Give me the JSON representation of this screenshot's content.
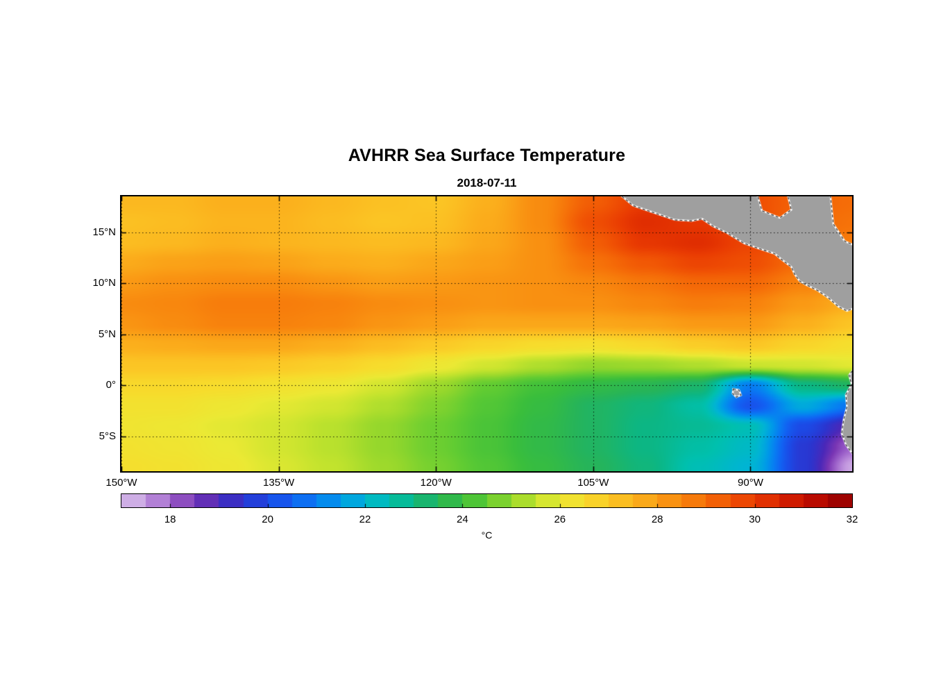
{
  "chart_data": {
    "type": "heatmap",
    "title": "AVHRR Sea Surface Temperature",
    "subtitle": "2018-07-11",
    "grid_lines": true,
    "x_axis": {
      "min": -150,
      "max": -80.3,
      "ticks": [
        {
          "v": -150,
          "label": "150°W"
        },
        {
          "v": -135,
          "label": "135°W"
        },
        {
          "v": -120,
          "label": "120°W"
        },
        {
          "v": -105,
          "label": "105°W"
        },
        {
          "v": -90,
          "label": "90°W"
        }
      ]
    },
    "y_axis": {
      "min": -8.4,
      "max": 18.5,
      "ticks": [
        {
          "v": 15,
          "label": "15°N"
        },
        {
          "v": 10,
          "label": "10°N"
        },
        {
          "v": 5,
          "label": "5°N"
        },
        {
          "v": 0,
          "label": "0°"
        },
        {
          "v": -5,
          "label": "5°S"
        }
      ]
    },
    "colorbar": {
      "min": 17,
      "max": 32,
      "step": 0.5,
      "unit_label": "°C",
      "ticks": [
        {
          "v": 18,
          "label": "18"
        },
        {
          "v": 20,
          "label": "20"
        },
        {
          "v": 22,
          "label": "22"
        },
        {
          "v": 24,
          "label": "24"
        },
        {
          "v": 26,
          "label": "26"
        },
        {
          "v": 28,
          "label": "28"
        },
        {
          "v": 30,
          "label": "30"
        },
        {
          "v": 32,
          "label": "32"
        }
      ],
      "stops": [
        [
          17.0,
          "#d8c2ea"
        ],
        [
          17.5,
          "#c49ae0"
        ],
        [
          18.0,
          "#a066cc"
        ],
        [
          18.5,
          "#7a36b4"
        ],
        [
          19.0,
          "#4b28b8"
        ],
        [
          19.5,
          "#2b35cf"
        ],
        [
          20.0,
          "#1c4ae6"
        ],
        [
          20.5,
          "#1261f2"
        ],
        [
          21.0,
          "#087df2"
        ],
        [
          21.5,
          "#009ae8"
        ],
        [
          22.0,
          "#00b4d4"
        ],
        [
          22.5,
          "#00c0ae"
        ],
        [
          23.0,
          "#0cb684"
        ],
        [
          23.5,
          "#26b45a"
        ],
        [
          24.0,
          "#3abe3c"
        ],
        [
          24.5,
          "#62cc32"
        ],
        [
          25.0,
          "#95d72c"
        ],
        [
          25.5,
          "#c2e32d"
        ],
        [
          26.0,
          "#ebe934"
        ],
        [
          26.5,
          "#f7dc2c"
        ],
        [
          27.0,
          "#fbc926"
        ],
        [
          27.5,
          "#fbb41e"
        ],
        [
          28.0,
          "#fa9e16"
        ],
        [
          28.5,
          "#f8870e"
        ],
        [
          29.0,
          "#f56d08"
        ],
        [
          29.5,
          "#f05304"
        ],
        [
          30.0,
          "#e93b02"
        ],
        [
          30.5,
          "#da2500"
        ],
        [
          31.0,
          "#c51200"
        ],
        [
          31.5,
          "#ad0400"
        ],
        [
          32.0,
          "#900000"
        ]
      ]
    },
    "sst_grid": {
      "lons": [
        -150,
        -145,
        -140,
        -135,
        -130,
        -125,
        -120,
        -115,
        -110,
        -105,
        -100,
        -95,
        -90,
        -85,
        -80
      ],
      "lats": [
        18,
        16,
        14,
        12,
        10,
        8,
        6,
        4,
        2,
        0,
        -2,
        -4,
        -6,
        -8
      ],
      "values": [
        [
          27.4,
          27.4,
          27.6,
          27.6,
          27.4,
          27.2,
          27.1,
          27.6,
          28.4,
          29.3,
          30.0,
          30.0,
          29.6,
          29.2,
          29.0
        ],
        [
          27.2,
          27.3,
          27.5,
          27.5,
          27.3,
          27.1,
          27.2,
          27.7,
          28.4,
          29.6,
          30.3,
          30.1,
          29.6,
          29.1,
          28.9
        ],
        [
          27.3,
          27.4,
          27.6,
          27.5,
          27.4,
          27.3,
          27.4,
          27.8,
          28.3,
          29.3,
          30.1,
          30.3,
          29.8,
          29.0,
          28.7
        ],
        [
          27.7,
          27.9,
          28.0,
          27.9,
          27.7,
          27.6,
          27.8,
          28.0,
          28.3,
          28.9,
          29.4,
          29.8,
          29.6,
          29.0,
          28.6
        ],
        [
          28.1,
          28.3,
          28.4,
          28.4,
          28.2,
          28.0,
          28.1,
          28.2,
          28.3,
          28.5,
          28.8,
          29.1,
          29.1,
          28.6,
          28.1
        ],
        [
          28.4,
          28.5,
          28.7,
          28.7,
          28.6,
          28.4,
          28.3,
          28.2,
          28.3,
          28.3,
          28.5,
          28.7,
          28.6,
          28.1,
          27.6
        ],
        [
          28.2,
          28.4,
          28.6,
          28.6,
          28.5,
          28.2,
          28.0,
          27.8,
          27.8,
          27.8,
          27.9,
          28.1,
          28.1,
          27.6,
          27.1
        ],
        [
          27.6,
          27.7,
          27.8,
          27.8,
          27.6,
          27.3,
          27.0,
          26.7,
          26.5,
          26.4,
          26.6,
          26.9,
          27.1,
          26.7,
          26.4
        ],
        [
          27.1,
          27.1,
          27.1,
          27.0,
          26.8,
          26.5,
          26.1,
          25.7,
          25.3,
          25.0,
          25.1,
          25.3,
          25.6,
          25.7,
          25.9
        ],
        [
          26.6,
          26.6,
          26.5,
          26.3,
          26.1,
          25.7,
          25.1,
          24.5,
          24.1,
          23.8,
          23.6,
          23.3,
          21.0,
          23.0,
          23.4
        ],
        [
          26.3,
          26.3,
          26.1,
          25.9,
          25.7,
          25.3,
          24.8,
          24.3,
          23.9,
          23.4,
          23.1,
          22.6,
          20.2,
          21.8,
          20.8
        ],
        [
          26.2,
          26.1,
          25.9,
          25.7,
          25.4,
          25.0,
          24.6,
          24.2,
          23.8,
          23.4,
          23.0,
          22.8,
          22.4,
          20.0,
          18.8
        ],
        [
          26.3,
          26.2,
          26.0,
          25.7,
          25.4,
          25.0,
          24.6,
          24.2,
          23.8,
          23.4,
          23.0,
          22.6,
          22.2,
          19.6,
          18.0
        ],
        [
          26.4,
          26.3,
          26.1,
          25.8,
          25.5,
          25.1,
          24.7,
          24.3,
          23.9,
          23.5,
          23.1,
          22.4,
          22.0,
          19.6,
          17.3
        ]
      ]
    },
    "land": {
      "fill": "#9f9f9f",
      "coast_outline": "#ffffff",
      "coast_dash": "#1a1a1a",
      "polygons": [
        {
          "name": "central-america",
          "points": [
            [
              -102.6,
              18.8
            ],
            [
              -101.2,
              17.6
            ],
            [
              -99.2,
              16.9
            ],
            [
              -97.2,
              16.2
            ],
            [
              -95.6,
              16.1
            ],
            [
              -94.6,
              16.3
            ],
            [
              -93.6,
              15.6
            ],
            [
              -92.2,
              14.9
            ],
            [
              -90.6,
              13.9
            ],
            [
              -89.2,
              13.4
            ],
            [
              -87.7,
              12.9
            ],
            [
              -87.0,
              12.3
            ],
            [
              -86.1,
              11.6
            ],
            [
              -85.8,
              10.9
            ],
            [
              -85.3,
              10.2
            ],
            [
              -84.6,
              9.8
            ],
            [
              -83.6,
              9.3
            ],
            [
              -82.6,
              8.6
            ],
            [
              -81.6,
              7.7
            ],
            [
              -80.8,
              7.3
            ],
            [
              -80.0,
              7.6
            ],
            [
              -79.8,
              9.0
            ],
            [
              -79.8,
              18.8
            ]
          ]
        },
        {
          "name": "south-america",
          "points": [
            [
              -80.0,
              1.8
            ],
            [
              -80.6,
              1.0
            ],
            [
              -80.35,
              0.1
            ],
            [
              -80.9,
              -0.9
            ],
            [
              -80.8,
              -2.1
            ],
            [
              -81.1,
              -3.3
            ],
            [
              -81.3,
              -4.7
            ],
            [
              -80.9,
              -5.8
            ],
            [
              -80.4,
              -6.5
            ],
            [
              -79.8,
              -7.3
            ],
            [
              -79.8,
              1.8
            ]
          ]
        },
        {
          "name": "galapagos-island",
          "points": [
            [
              -91.65,
              -0.35
            ],
            [
              -91.1,
              -0.45
            ],
            [
              -90.9,
              -0.95
            ],
            [
              -91.35,
              -1.15
            ],
            [
              -91.7,
              -0.8
            ]
          ]
        }
      ],
      "ocean_windows": [
        {
          "name": "caribbean-gulf-of-honduras",
          "points": [
            [
              -89.4,
              18.8
            ],
            [
              -86.5,
              18.8
            ],
            [
              -86.1,
              17.2
            ],
            [
              -87.2,
              16.4
            ],
            [
              -88.9,
              17.1
            ]
          ]
        },
        {
          "name": "caribbean-corner",
          "points": [
            [
              -82.4,
              18.8
            ],
            [
              -79.8,
              18.8
            ],
            [
              -79.8,
              13.6
            ],
            [
              -81.0,
              14.1
            ],
            [
              -82.1,
              15.8
            ]
          ]
        }
      ]
    }
  }
}
